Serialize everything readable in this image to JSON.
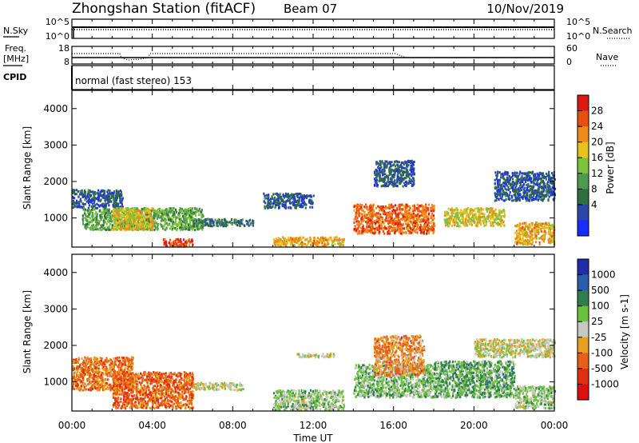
{
  "header": {
    "station_title": "Zhongshan Station (fitACF)",
    "beam": "Beam 07",
    "date": "10/Nov/2019"
  },
  "sky_panel": {
    "left_label": "N.Sky",
    "left_ticks": [
      "10^5",
      "10^0"
    ],
    "right_ticks": [
      "10^5",
      "10^0"
    ],
    "right_label": "N.Search"
  },
  "freq_panel": {
    "left_label_1": "Freq.",
    "left_label_2": "[MHz]",
    "left_ticks": [
      "18",
      "8"
    ],
    "right_ticks": [
      "60",
      "0"
    ],
    "right_label": "Nave"
  },
  "cpid_panel": {
    "label": "CPID",
    "mode": "normal (fast stereo) 153"
  },
  "x_axis": {
    "ticks": [
      "00:00",
      "04:00",
      "08:00",
      "12:00",
      "16:00",
      "20:00",
      "00:00"
    ],
    "label": "Time UT"
  },
  "power_panel": {
    "ylabel": "Slant Range [km]",
    "yticks": [
      "4000",
      "3000",
      "2000",
      "1000"
    ],
    "colorbar_label": "Power [dB]",
    "colorbar_ticks": [
      "28",
      "24",
      "20",
      "16",
      "12",
      "8",
      "4"
    ],
    "colors": [
      "#1a2cff",
      "#2a46aa",
      "#2f6e3e",
      "#4e9b50",
      "#7ec43a",
      "#e8c21c",
      "#f08a1a",
      "#e85010",
      "#dd1a10"
    ]
  },
  "velocity_panel": {
    "ylabel": "Slant Range [km]",
    "yticks": [
      "4000",
      "3000",
      "2000",
      "1000"
    ],
    "colorbar_label": "Velocity [m s-1]",
    "colorbar_ticks": [
      "1000",
      "500",
      "100",
      "25",
      "-25",
      "-100",
      "-500",
      "-1000"
    ],
    "colors": [
      "#1f2ea8",
      "#2a5ea6",
      "#2f7e52",
      "#6cc23c",
      "#c8c8c0",
      "#e8a020",
      "#e86018",
      "#e03010",
      "#dd1010"
    ]
  },
  "chart_data": [
    {
      "type": "heatmap",
      "title": "Power",
      "ylabel": "Slant Range [km]",
      "colorbar_label": "Power [dB]",
      "xlim": [
        "00:00",
        "24:00"
      ],
      "ylim": [
        200,
        4500
      ],
      "color_range": [
        0,
        30
      ],
      "regions": [
        {
          "t0": 0.0,
          "t1": 2.5,
          "r0": 1300,
          "r1": 1800,
          "value": 6
        },
        {
          "t0": 0.5,
          "t1": 6.5,
          "r0": 700,
          "r1": 1300,
          "value": 12
        },
        {
          "t0": 2.0,
          "t1": 4.0,
          "r0": 700,
          "r1": 1300,
          "value": 18
        },
        {
          "t0": 4.5,
          "t1": 6.0,
          "r0": 250,
          "r1": 450,
          "value": 26
        },
        {
          "t0": 6.0,
          "t1": 9.0,
          "r0": 800,
          "r1": 1000,
          "value": 8
        },
        {
          "t0": 10.0,
          "t1": 13.5,
          "r0": 250,
          "r1": 500,
          "value": 20
        },
        {
          "t0": 9.5,
          "t1": 12.0,
          "r0": 1300,
          "r1": 1700,
          "value": 6
        },
        {
          "t0": 14.0,
          "t1": 18.0,
          "r0": 600,
          "r1": 1400,
          "value": 24
        },
        {
          "t0": 15.0,
          "t1": 17.0,
          "r0": 1900,
          "r1": 2600,
          "value": 6
        },
        {
          "t0": 18.5,
          "t1": 21.5,
          "r0": 800,
          "r1": 1300,
          "value": 18
        },
        {
          "t0": 21.0,
          "t1": 24.0,
          "r0": 1500,
          "r1": 2300,
          "value": 6
        },
        {
          "t0": 22.0,
          "t1": 24.0,
          "r0": 300,
          "r1": 900,
          "value": 20
        }
      ]
    },
    {
      "type": "heatmap",
      "title": "Velocity",
      "ylabel": "Slant Range [km]",
      "colorbar_label": "Velocity [m s-1]",
      "xlim": [
        "00:00",
        "24:00"
      ],
      "ylim": [
        200,
        4500
      ],
      "color_range": [
        -1000,
        1000
      ],
      "regions": [
        {
          "t0": 0.0,
          "t1": 3.0,
          "r0": 800,
          "r1": 1700,
          "value": -400
        },
        {
          "t0": 2.0,
          "t1": 6.0,
          "r0": 300,
          "r1": 1300,
          "value": -450
        },
        {
          "t0": 6.0,
          "t1": 8.5,
          "r0": 800,
          "r1": 1000,
          "value": 0
        },
        {
          "t0": 10.0,
          "t1": 13.5,
          "r0": 250,
          "r1": 800,
          "value": 150
        },
        {
          "t0": 11.0,
          "t1": 13.0,
          "r0": 1700,
          "r1": 1800,
          "value": 0
        },
        {
          "t0": 14.0,
          "t1": 18.0,
          "r0": 600,
          "r1": 1500,
          "value": 200
        },
        {
          "t0": 15.0,
          "t1": 17.5,
          "r0": 1200,
          "r1": 2300,
          "value": -300
        },
        {
          "t0": 18.0,
          "t1": 22.0,
          "r0": 600,
          "r1": 1600,
          "value": 300
        },
        {
          "t0": 20.0,
          "t1": 24.0,
          "r0": 1700,
          "r1": 2200,
          "value": 0
        },
        {
          "t0": 22.0,
          "t1": 24.0,
          "r0": 300,
          "r1": 900,
          "value": 150
        }
      ]
    }
  ]
}
